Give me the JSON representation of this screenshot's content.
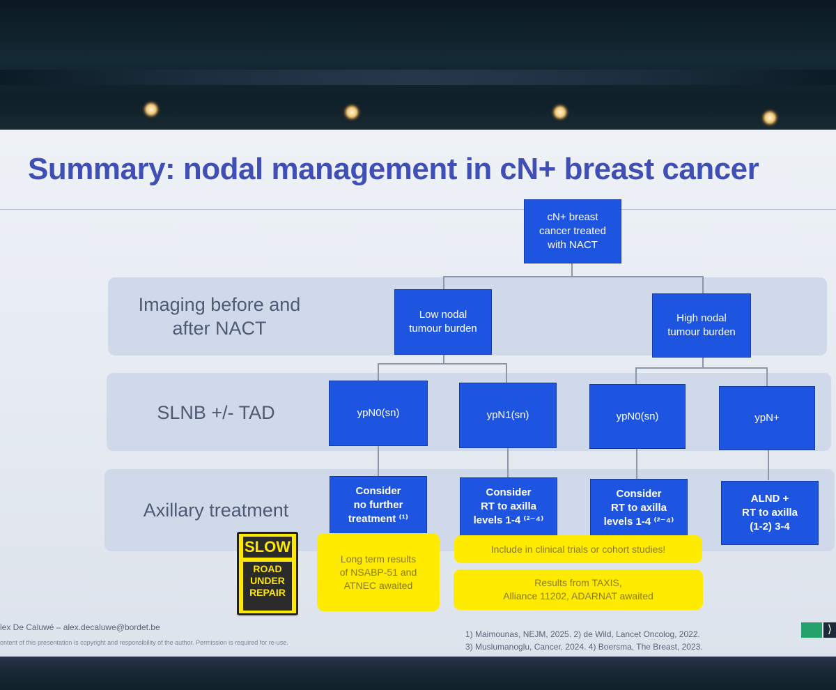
{
  "slide": {
    "title": "Summary: nodal management in cN+ breast cancer",
    "rows": {
      "imaging": "Imaging before and after NACT",
      "slnb": "SLNB +/- TAD",
      "axillary": "Axillary treatment"
    },
    "nodes": {
      "root": "cN+ breast\ncancer treated\nwith NACT",
      "low": "Low nodal\ntumour burden",
      "high": "High nodal\ntumour burden",
      "ypn0_a": "ypN0(sn)",
      "ypn1": "ypN1(sn)",
      "ypn0_b": "ypN0(sn)",
      "ypn_plus": "ypN+",
      "tx1": "Consider\nno further\ntreatment ⁽¹⁾",
      "tx2": "Consider\nRT to axilla\nlevels 1-4 ⁽²⁻⁴⁾",
      "tx3": "Consider\nRT to axilla\nlevels 1-4 ⁽²⁻⁴⁾",
      "tx4": "ALND +\nRT to axilla\n(1-2) 3-4"
    },
    "notes": {
      "nsabp": "Long term results\nof NSABP-51 and\nATNEC awaited",
      "trials": "Include in clinical trials or cohort studies!",
      "taxis": "Results from TAXIS,\nAlliance 11202, ADARNAT awaited"
    },
    "sign": {
      "top": "SLOW",
      "bottom": "ROAD\nUNDER\nREPAIR"
    },
    "footer": {
      "author": "lex De Caluwé – alex.decaluwe@bordet.be",
      "copyright": "ontent of this presentation is copyright and responsibility of the author. Permission is required for re-use.",
      "ref1": "1)  Maimounas, NEJM, 2025. 2) de Wild, Lancet Oncolog, 2022.",
      "ref2": "3) Muslumanoglu, Cancer, 2024. 4) Boersma, The Breast, 2023."
    }
  },
  "colors": {
    "title": "#3f4fb5",
    "node_blue": "#1e55e0",
    "band": "#cfd9ea",
    "yellow": "#ffeb00"
  }
}
